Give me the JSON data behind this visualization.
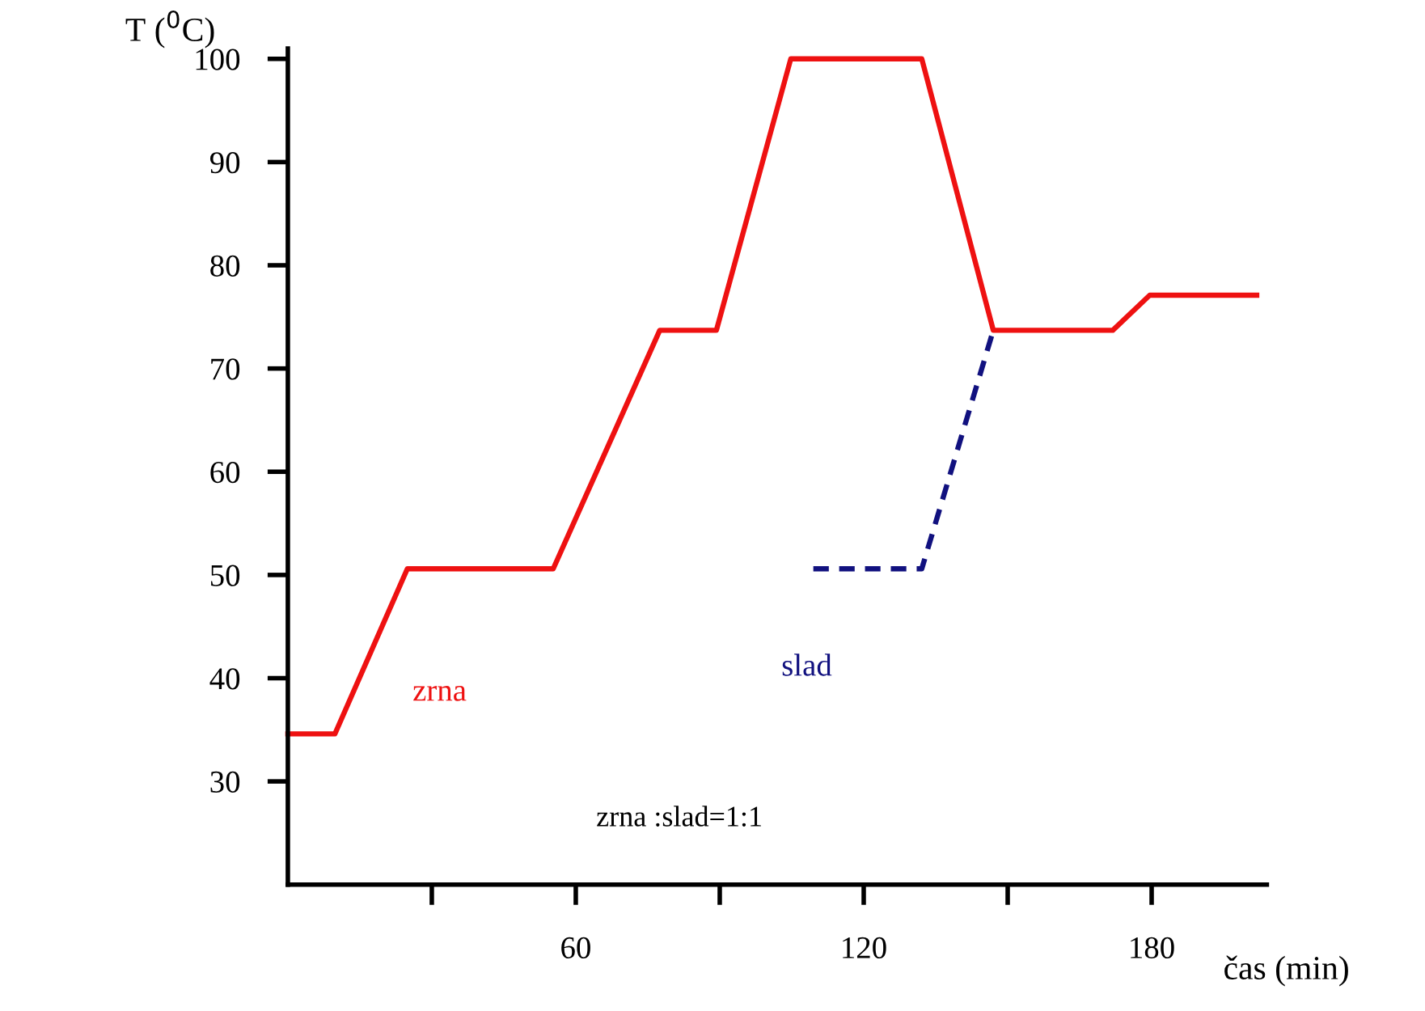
{
  "chart_data": {
    "type": "line",
    "xlabel": "čas (min)",
    "ylabel": "T ($^{0}$C)",
    "x": [
      0,
      9.8,
      24.9,
      55.3,
      77.5,
      89.3,
      104.8,
      132.1,
      147,
      171.9,
      179.6,
      201.9
    ],
    "series": [
      {
        "name": "zrna",
        "color": "#ee1111",
        "line_style": "solid",
        "values": [
          34.6,
          34.6,
          50.6,
          50.6,
          73.7,
          73.7,
          100,
          100,
          73.7,
          73.7,
          77.1,
          77.1
        ]
      },
      {
        "name": "slad",
        "color": "#11117f",
        "line_style": "dashed",
        "x": [
          109.5,
          132.1,
          147
        ],
        "values": [
          50.6,
          50.6,
          73.7
        ]
      }
    ],
    "annotations": [
      "zrna :slad=1:1"
    ],
    "xlim": [
      0,
      204
    ],
    "ylim": [
      20,
      101
    ],
    "xticks": [
      {
        "value": 30,
        "label": null
      },
      60,
      {
        "value": 90,
        "label": null
      },
      120,
      {
        "value": 150,
        "label": null
      },
      180
    ],
    "yticks": [
      30,
      40,
      50,
      60,
      70,
      80,
      90,
      100
    ],
    "grid": false,
    "legend": false,
    "marker": "none"
  }
}
